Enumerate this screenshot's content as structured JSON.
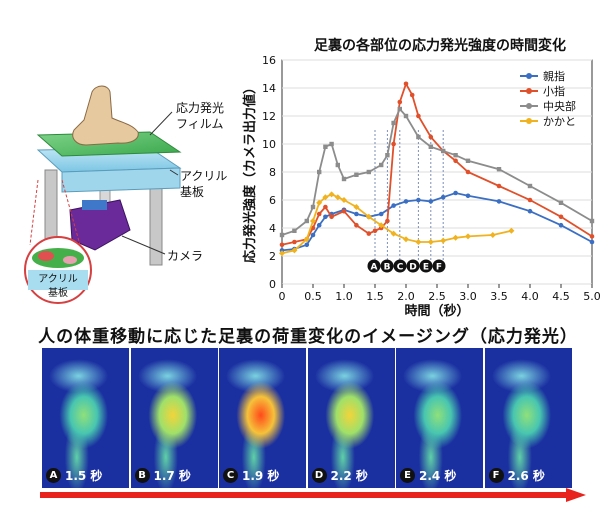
{
  "diagram": {
    "film_label_1": "応力発光",
    "film_label_2": "フィルム",
    "acrylic_label_1": "アクリル",
    "acrylic_label_2": "基板",
    "camera_label": "カメラ",
    "inset_label_1": "アクリル",
    "inset_label_2": "基板"
  },
  "markers": [
    "A",
    "B",
    "C",
    "D",
    "E",
    "F"
  ],
  "subtitle": "人の体重移動に応じた足裏の荷重変化のイメージング（応力発光）",
  "panels": [
    {
      "letter": "A",
      "time": "1.5 秒",
      "intensity": 0.35
    },
    {
      "letter": "B",
      "time": "1.7 秒",
      "intensity": 0.6
    },
    {
      "letter": "C",
      "time": "1.9 秒",
      "intensity": 1.0
    },
    {
      "letter": "D",
      "time": "2.2 秒",
      "intensity": 0.6
    },
    {
      "letter": "E",
      "time": "2.4 秒",
      "intensity": 0.55
    },
    {
      "letter": "F",
      "time": "2.6 秒",
      "intensity": 0.35
    }
  ],
  "colors": {
    "big_toe": "#3a6fc4",
    "little_toe": "#e0502a",
    "center": "#8c8c8c",
    "heel": "#f0b21e",
    "arrow": "#e8231d",
    "panel_bg": "#1a2fa0"
  },
  "chart_data": {
    "type": "line",
    "title": "足裏の各部位の応力発光強度の時間変化",
    "xlabel": "時間（秒）",
    "ylabel": "応力発光強度（カメラ出力値）",
    "xlim": [
      0,
      5.0
    ],
    "ylim": [
      0,
      16
    ],
    "xticks": [
      "0",
      "0.5",
      "1.0",
      "1.5",
      "2.0",
      "2.5",
      "3.0",
      "3.5",
      "4.0",
      "4.5",
      "5.0"
    ],
    "yticks": [
      "0",
      "2",
      "4",
      "6",
      "8",
      "10",
      "12",
      "14",
      "16"
    ],
    "legend_position": "top-right",
    "marker_times": [
      1.5,
      1.7,
      1.9,
      2.2,
      2.4,
      2.6
    ],
    "series": [
      {
        "name": "親指",
        "x": [
          0,
          0.2,
          0.4,
          0.5,
          0.6,
          0.7,
          0.8,
          1.0,
          1.2,
          1.4,
          1.6,
          1.8,
          2.0,
          2.2,
          2.4,
          2.6,
          2.8,
          3.0,
          3.5,
          4.0,
          4.5,
          5.0
        ],
        "y": [
          2.4,
          2.5,
          2.8,
          3.5,
          4.2,
          4.8,
          5.0,
          5.3,
          5.0,
          4.8,
          5.0,
          5.6,
          5.9,
          6.0,
          5.9,
          6.2,
          6.5,
          6.3,
          5.9,
          5.2,
          4.2,
          3.0
        ]
      },
      {
        "name": "小指",
        "x": [
          0,
          0.2,
          0.4,
          0.5,
          0.6,
          0.7,
          0.8,
          1.0,
          1.2,
          1.4,
          1.5,
          1.6,
          1.7,
          1.8,
          1.9,
          2.0,
          2.1,
          2.2,
          2.4,
          2.6,
          2.8,
          3.0,
          3.5,
          4.0,
          4.5,
          5.0
        ],
        "y": [
          2.8,
          3.0,
          3.2,
          4.0,
          5.0,
          5.5,
          4.8,
          5.2,
          4.2,
          3.6,
          3.8,
          4.0,
          4.5,
          10.0,
          13.0,
          14.3,
          13.5,
          12.0,
          10.5,
          9.5,
          8.8,
          8.0,
          7.0,
          6.0,
          4.8,
          3.4
        ]
      },
      {
        "name": "中央部",
        "x": [
          0,
          0.2,
          0.4,
          0.5,
          0.6,
          0.7,
          0.8,
          0.9,
          1.0,
          1.2,
          1.4,
          1.6,
          1.7,
          1.8,
          1.9,
          2.0,
          2.2,
          2.4,
          2.6,
          2.8,
          3.0,
          3.5,
          4.0,
          4.5,
          5.0
        ],
        "y": [
          3.5,
          3.8,
          4.5,
          5.5,
          8.0,
          9.8,
          10.0,
          8.5,
          7.5,
          7.8,
          8.0,
          8.5,
          9.2,
          11.5,
          12.5,
          12.0,
          10.5,
          9.8,
          9.5,
          9.2,
          8.8,
          8.2,
          7.0,
          5.8,
          4.5
        ]
      },
      {
        "name": "かかと",
        "x": [
          0,
          0.2,
          0.4,
          0.5,
          0.6,
          0.7,
          0.8,
          0.9,
          1.0,
          1.2,
          1.4,
          1.6,
          1.8,
          2.0,
          2.2,
          2.4,
          2.6,
          2.8,
          3.0,
          3.4,
          3.7
        ],
        "y": [
          2.2,
          2.4,
          3.2,
          4.5,
          5.8,
          6.2,
          6.4,
          6.2,
          6.0,
          5.5,
          4.8,
          4.2,
          3.6,
          3.2,
          3.0,
          3.0,
          3.1,
          3.3,
          3.4,
          3.5,
          3.8
        ]
      }
    ]
  }
}
